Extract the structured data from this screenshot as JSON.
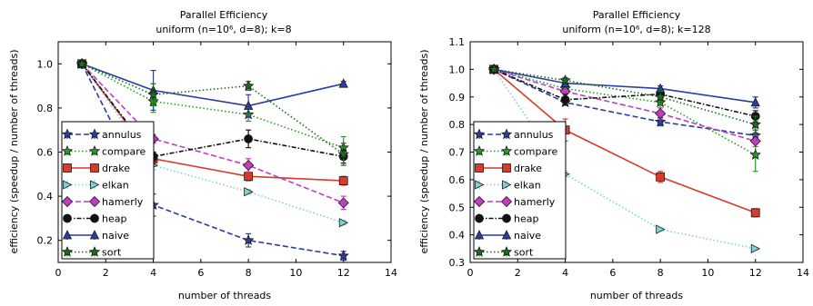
{
  "chart_data": [
    {
      "type": "line",
      "title": "Parallel Efficiency",
      "subtitle": "uniform (n=10⁶, d=8); k=8",
      "xlabel": "number of threads",
      "ylabel": "efficiency (speedup / number of threads)",
      "xlim": [
        0,
        14
      ],
      "ylim": [
        0.1,
        1.1
      ],
      "xticks": [
        0,
        2,
        4,
        6,
        8,
        10,
        12,
        14
      ],
      "yticks": [
        0.2,
        0.4,
        0.6,
        0.8,
        1.0
      ],
      "ytick_labels": [
        "0.2",
        "0.4",
        "0.6",
        "0.8",
        "1.0"
      ],
      "legend_position": "lower-left",
      "x": [
        1,
        4,
        8,
        12
      ],
      "series": [
        {
          "name": "annulus",
          "color": "#2b3d9e",
          "style": "dashed",
          "marker": "star",
          "values": [
            1.0,
            0.36,
            0.2,
            0.13
          ],
          "err": [
            0,
            0.05,
            0.03,
            0.02
          ]
        },
        {
          "name": "compare",
          "color": "#2a9a2a",
          "style": "dotted",
          "marker": "star",
          "values": [
            1.0,
            0.83,
            0.77,
            0.62
          ],
          "err": [
            0,
            0.05,
            0.03,
            0.05
          ]
        },
        {
          "name": "drake",
          "color": "#d93a2a",
          "style": "solid",
          "marker": "square",
          "values": [
            1.0,
            0.57,
            0.49,
            0.47
          ],
          "err": [
            0,
            0.02,
            0.02,
            0.02
          ]
        },
        {
          "name": "elkan",
          "color": "#7fd0cf",
          "style": "dotted",
          "marker": "triangle-right",
          "values": [
            1.0,
            0.54,
            0.42,
            0.28
          ],
          "err": [
            0,
            0.02,
            0.01,
            0.01
          ]
        },
        {
          "name": "hamerly",
          "color": "#c23cc2",
          "style": "dashed",
          "marker": "diamond",
          "values": [
            1.0,
            0.66,
            0.54,
            0.37
          ],
          "err": [
            0,
            0.02,
            0.03,
            0.03
          ]
        },
        {
          "name": "heap",
          "color": "#111111",
          "style": "dashdot",
          "marker": "circle",
          "values": [
            1.0,
            0.58,
            0.66,
            0.58
          ],
          "err": [
            0,
            0.02,
            0.04,
            0.03
          ]
        },
        {
          "name": "naive",
          "color": "#2b3d9e",
          "style": "solid",
          "marker": "triangle-up",
          "values": [
            1.0,
            0.88,
            0.81,
            0.91
          ],
          "err": [
            0,
            0.09,
            0.05,
            0.01
          ]
        },
        {
          "name": "sort",
          "color": "#1a6e1a",
          "style": "dotted",
          "marker": "star",
          "values": [
            1.0,
            0.86,
            0.9,
            0.59
          ],
          "err": [
            0,
            0.05,
            0.02,
            0.05
          ]
        }
      ]
    },
    {
      "type": "line",
      "title": "Parallel Efficiency",
      "subtitle": "uniform (n=10⁶, d=8); k=128",
      "xlabel": "number of threads",
      "ylabel": "efficiency (speedup / number of threads)",
      "xlim": [
        0,
        14
      ],
      "ylim": [
        0.3,
        1.1
      ],
      "xticks": [
        0,
        2,
        4,
        6,
        8,
        10,
        12,
        14
      ],
      "yticks": [
        0.3,
        0.4,
        0.5,
        0.6,
        0.7,
        0.8,
        0.9,
        1.0,
        1.1
      ],
      "ytick_labels": [
        "0.3",
        "0.4",
        "0.5",
        "0.6",
        "0.7",
        "0.8",
        "0.9",
        "1.0",
        "1.1"
      ],
      "legend_position": "lower-left",
      "x": [
        1,
        4,
        8,
        12
      ],
      "series": [
        {
          "name": "annulus",
          "color": "#2b3d9e",
          "style": "dashed",
          "marker": "star",
          "values": [
            1.0,
            0.88,
            0.81,
            0.76
          ],
          "err": [
            0,
            0.01,
            0.015,
            0.02
          ]
        },
        {
          "name": "compare",
          "color": "#2a9a2a",
          "style": "dotted",
          "marker": "star",
          "values": [
            1.0,
            0.93,
            0.88,
            0.69
          ],
          "err": [
            0,
            0.02,
            0.02,
            0.06
          ]
        },
        {
          "name": "drake",
          "color": "#d93a2a",
          "style": "solid",
          "marker": "square",
          "values": [
            1.0,
            0.78,
            0.61,
            0.48
          ],
          "err": [
            0,
            0.04,
            0.02,
            0.015
          ]
        },
        {
          "name": "elkan",
          "color": "#7fd0cf",
          "style": "dotted",
          "marker": "triangle-right",
          "values": [
            1.0,
            0.62,
            0.42,
            0.35
          ],
          "err": [
            0,
            0.01,
            0.005,
            0.005
          ]
        },
        {
          "name": "hamerly",
          "color": "#c23cc2",
          "style": "dashed",
          "marker": "diamond",
          "values": [
            1.0,
            0.92,
            0.84,
            0.74
          ],
          "err": [
            0,
            0.02,
            0.02,
            0.02
          ]
        },
        {
          "name": "heap",
          "color": "#111111",
          "style": "dashdot",
          "marker": "circle",
          "values": [
            1.0,
            0.89,
            0.91,
            0.83
          ],
          "err": [
            0,
            0.02,
            0.02,
            0.02
          ]
        },
        {
          "name": "naive",
          "color": "#2b3d9e",
          "style": "solid",
          "marker": "triangle-up",
          "values": [
            1.0,
            0.95,
            0.93,
            0.88
          ],
          "err": [
            0,
            0.01,
            0.01,
            0.02
          ]
        },
        {
          "name": "sort",
          "color": "#1a6e1a",
          "style": "dotted",
          "marker": "star",
          "values": [
            1.0,
            0.96,
            0.9,
            0.8
          ],
          "err": [
            0,
            0.01,
            0.02,
            0.03
          ]
        }
      ]
    }
  ]
}
